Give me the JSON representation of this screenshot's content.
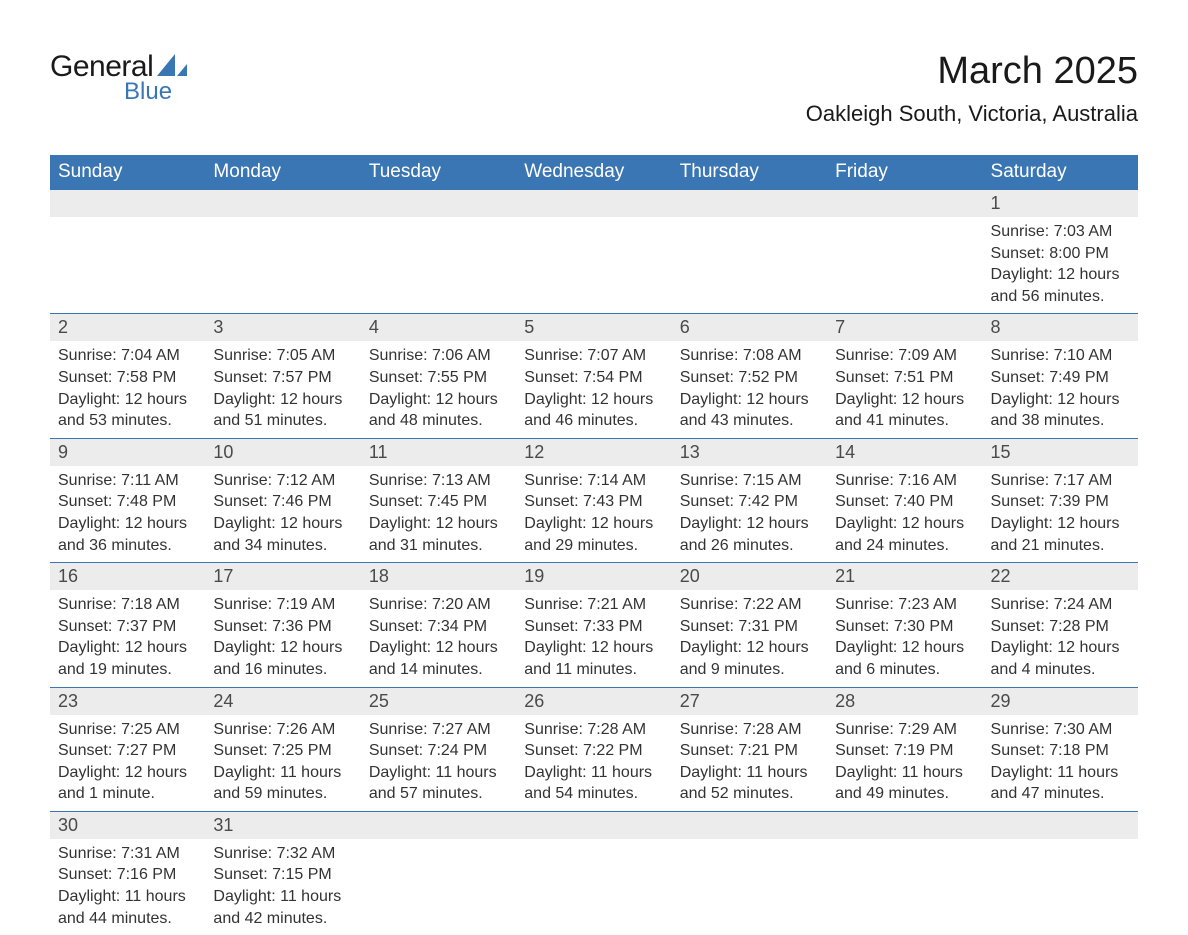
{
  "brand": {
    "name1": "General",
    "name2": "Blue",
    "shape_fill": "#3b76b4"
  },
  "title": "March 2025",
  "location": "Oakleigh South, Victoria, Australia",
  "colors": {
    "header_bg": "#3b76b4",
    "header_text": "#ffffff",
    "daynum_bg": "#ececec",
    "body_text": "#333333",
    "row_divider": "#3b76b4",
    "page_bg": "#ffffff"
  },
  "fonts": {
    "family": "Arial",
    "title_size_pt": 38,
    "location_size_pt": 22,
    "header_size_pt": 19,
    "daynum_size_pt": 18,
    "cell_size_pt": 16
  },
  "weekday_headers": [
    "Sunday",
    "Monday",
    "Tuesday",
    "Wednesday",
    "Thursday",
    "Friday",
    "Saturday"
  ],
  "labels": {
    "sunrise": "Sunrise:",
    "sunset": "Sunset:",
    "daylight": "Daylight:"
  },
  "weeks": [
    [
      null,
      null,
      null,
      null,
      null,
      null,
      {
        "day": 1,
        "sunrise": "7:03 AM",
        "sunset": "8:00 PM",
        "daylight": "12 hours and 56 minutes."
      }
    ],
    [
      {
        "day": 2,
        "sunrise": "7:04 AM",
        "sunset": "7:58 PM",
        "daylight": "12 hours and 53 minutes."
      },
      {
        "day": 3,
        "sunrise": "7:05 AM",
        "sunset": "7:57 PM",
        "daylight": "12 hours and 51 minutes."
      },
      {
        "day": 4,
        "sunrise": "7:06 AM",
        "sunset": "7:55 PM",
        "daylight": "12 hours and 48 minutes."
      },
      {
        "day": 5,
        "sunrise": "7:07 AM",
        "sunset": "7:54 PM",
        "daylight": "12 hours and 46 minutes."
      },
      {
        "day": 6,
        "sunrise": "7:08 AM",
        "sunset": "7:52 PM",
        "daylight": "12 hours and 43 minutes."
      },
      {
        "day": 7,
        "sunrise": "7:09 AM",
        "sunset": "7:51 PM",
        "daylight": "12 hours and 41 minutes."
      },
      {
        "day": 8,
        "sunrise": "7:10 AM",
        "sunset": "7:49 PM",
        "daylight": "12 hours and 38 minutes."
      }
    ],
    [
      {
        "day": 9,
        "sunrise": "7:11 AM",
        "sunset": "7:48 PM",
        "daylight": "12 hours and 36 minutes."
      },
      {
        "day": 10,
        "sunrise": "7:12 AM",
        "sunset": "7:46 PM",
        "daylight": "12 hours and 34 minutes."
      },
      {
        "day": 11,
        "sunrise": "7:13 AM",
        "sunset": "7:45 PM",
        "daylight": "12 hours and 31 minutes."
      },
      {
        "day": 12,
        "sunrise": "7:14 AM",
        "sunset": "7:43 PM",
        "daylight": "12 hours and 29 minutes."
      },
      {
        "day": 13,
        "sunrise": "7:15 AM",
        "sunset": "7:42 PM",
        "daylight": "12 hours and 26 minutes."
      },
      {
        "day": 14,
        "sunrise": "7:16 AM",
        "sunset": "7:40 PM",
        "daylight": "12 hours and 24 minutes."
      },
      {
        "day": 15,
        "sunrise": "7:17 AM",
        "sunset": "7:39 PM",
        "daylight": "12 hours and 21 minutes."
      }
    ],
    [
      {
        "day": 16,
        "sunrise": "7:18 AM",
        "sunset": "7:37 PM",
        "daylight": "12 hours and 19 minutes."
      },
      {
        "day": 17,
        "sunrise": "7:19 AM",
        "sunset": "7:36 PM",
        "daylight": "12 hours and 16 minutes."
      },
      {
        "day": 18,
        "sunrise": "7:20 AM",
        "sunset": "7:34 PM",
        "daylight": "12 hours and 14 minutes."
      },
      {
        "day": 19,
        "sunrise": "7:21 AM",
        "sunset": "7:33 PM",
        "daylight": "12 hours and 11 minutes."
      },
      {
        "day": 20,
        "sunrise": "7:22 AM",
        "sunset": "7:31 PM",
        "daylight": "12 hours and 9 minutes."
      },
      {
        "day": 21,
        "sunrise": "7:23 AM",
        "sunset": "7:30 PM",
        "daylight": "12 hours and 6 minutes."
      },
      {
        "day": 22,
        "sunrise": "7:24 AM",
        "sunset": "7:28 PM",
        "daylight": "12 hours and 4 minutes."
      }
    ],
    [
      {
        "day": 23,
        "sunrise": "7:25 AM",
        "sunset": "7:27 PM",
        "daylight": "12 hours and 1 minute."
      },
      {
        "day": 24,
        "sunrise": "7:26 AM",
        "sunset": "7:25 PM",
        "daylight": "11 hours and 59 minutes."
      },
      {
        "day": 25,
        "sunrise": "7:27 AM",
        "sunset": "7:24 PM",
        "daylight": "11 hours and 57 minutes."
      },
      {
        "day": 26,
        "sunrise": "7:28 AM",
        "sunset": "7:22 PM",
        "daylight": "11 hours and 54 minutes."
      },
      {
        "day": 27,
        "sunrise": "7:28 AM",
        "sunset": "7:21 PM",
        "daylight": "11 hours and 52 minutes."
      },
      {
        "day": 28,
        "sunrise": "7:29 AM",
        "sunset": "7:19 PM",
        "daylight": "11 hours and 49 minutes."
      },
      {
        "day": 29,
        "sunrise": "7:30 AM",
        "sunset": "7:18 PM",
        "daylight": "11 hours and 47 minutes."
      }
    ],
    [
      {
        "day": 30,
        "sunrise": "7:31 AM",
        "sunset": "7:16 PM",
        "daylight": "11 hours and 44 minutes."
      },
      {
        "day": 31,
        "sunrise": "7:32 AM",
        "sunset": "7:15 PM",
        "daylight": "11 hours and 42 minutes."
      },
      null,
      null,
      null,
      null,
      null
    ]
  ]
}
